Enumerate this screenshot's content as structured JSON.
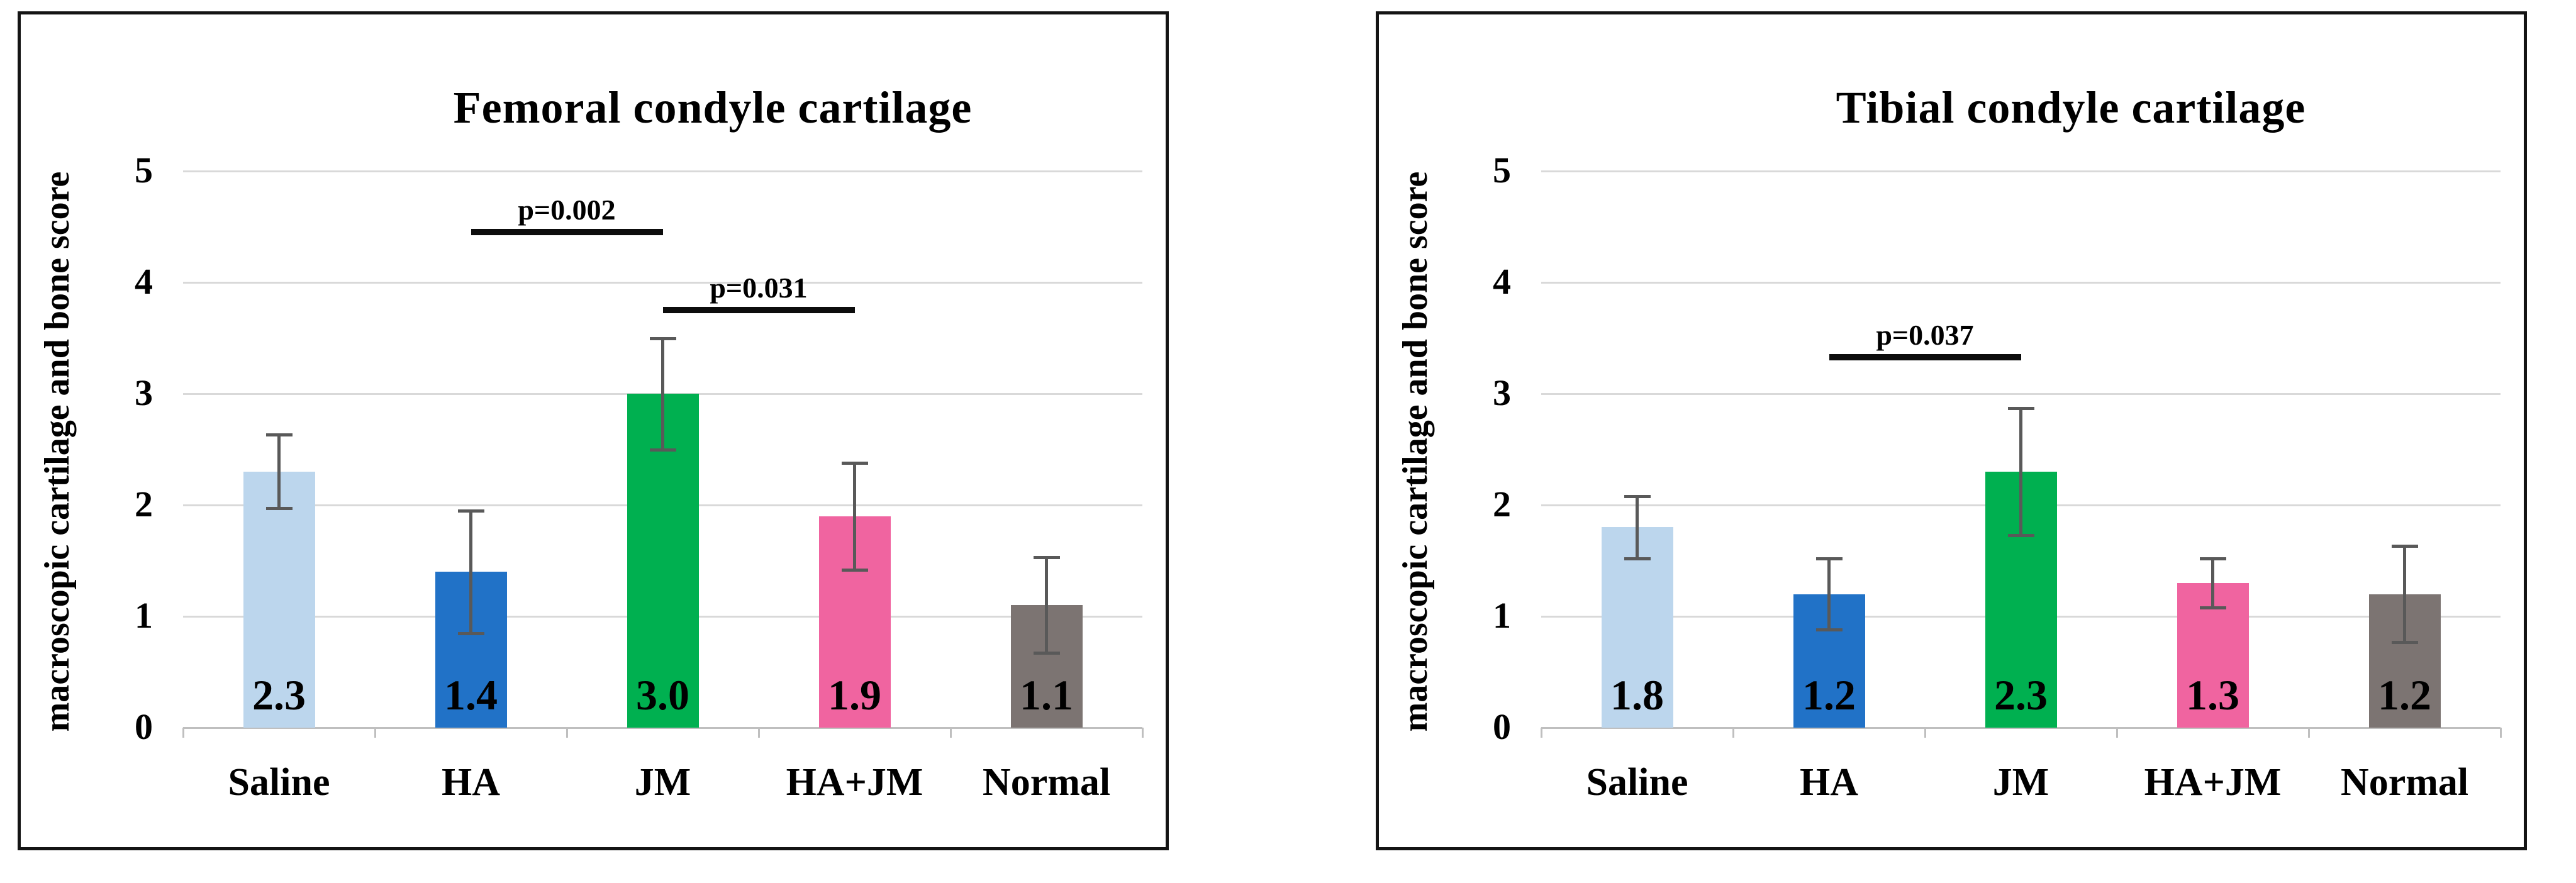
{
  "figure": {
    "background": "#FFFFFF"
  },
  "style": {
    "panel_border": "#141414",
    "gridline": "#D9D9D9",
    "axis_line": "#BFBFBF",
    "error_bar": "#595959",
    "bracket": "#0D0D0D",
    "text": "#000000"
  },
  "chart_data": [
    {
      "type": "bar",
      "title": "Femoral condyle cartilage",
      "ylabel": "macroscopic cartilage and bone score",
      "xlabel": "",
      "categories": [
        "Saline",
        "HA",
        "JM",
        "HA+JM",
        "Normal"
      ],
      "values": [
        2.3,
        1.4,
        3.0,
        1.9,
        1.1
      ],
      "value_labels": [
        "2.3",
        "1.4",
        "3.0",
        "1.9",
        "1.1"
      ],
      "errors": [
        0.33,
        0.55,
        0.5,
        0.48,
        0.43
      ],
      "bar_colors": [
        "#BCD6ED",
        "#2172C7",
        "#00B050",
        "#F064A0",
        "#7C7472"
      ],
      "ylim": [
        0,
        5
      ],
      "y_tick_labels": [
        "0",
        "1",
        "2",
        "3",
        "4",
        "5"
      ],
      "grid": true,
      "legend": null,
      "significance": [
        {
          "label": "p=0.002",
          "from_category": "HA",
          "to_category": "JM",
          "from": 1,
          "to": 2,
          "height": 4.45
        },
        {
          "label": "p=0.031",
          "from_category": "JM",
          "to_category": "HA+JM",
          "from": 2,
          "to": 3,
          "height": 3.75
        }
      ]
    },
    {
      "type": "bar",
      "title": "Tibial condyle cartilage",
      "ylabel": "macroscopic cartilage and bone score",
      "xlabel": "",
      "categories": [
        "Saline",
        "HA",
        "JM",
        "HA+JM",
        "Normal"
      ],
      "values": [
        1.8,
        1.2,
        2.3,
        1.3,
        1.2
      ],
      "value_labels": [
        "1.8",
        "1.2",
        "2.3",
        "1.3",
        "1.2"
      ],
      "errors": [
        0.28,
        0.32,
        0.57,
        0.22,
        0.43
      ],
      "bar_colors": [
        "#BCD6ED",
        "#2172C7",
        "#00B050",
        "#F064A0",
        "#7C7472"
      ],
      "ylim": [
        0,
        5
      ],
      "y_tick_labels": [
        "0",
        "1",
        "2",
        "3",
        "4",
        "5"
      ],
      "grid": true,
      "legend": null,
      "significance": [
        {
          "label": "p=0.037",
          "from_category": "HA",
          "to_category": "JM",
          "from": 1,
          "to": 2,
          "height": 3.33
        }
      ]
    }
  ]
}
